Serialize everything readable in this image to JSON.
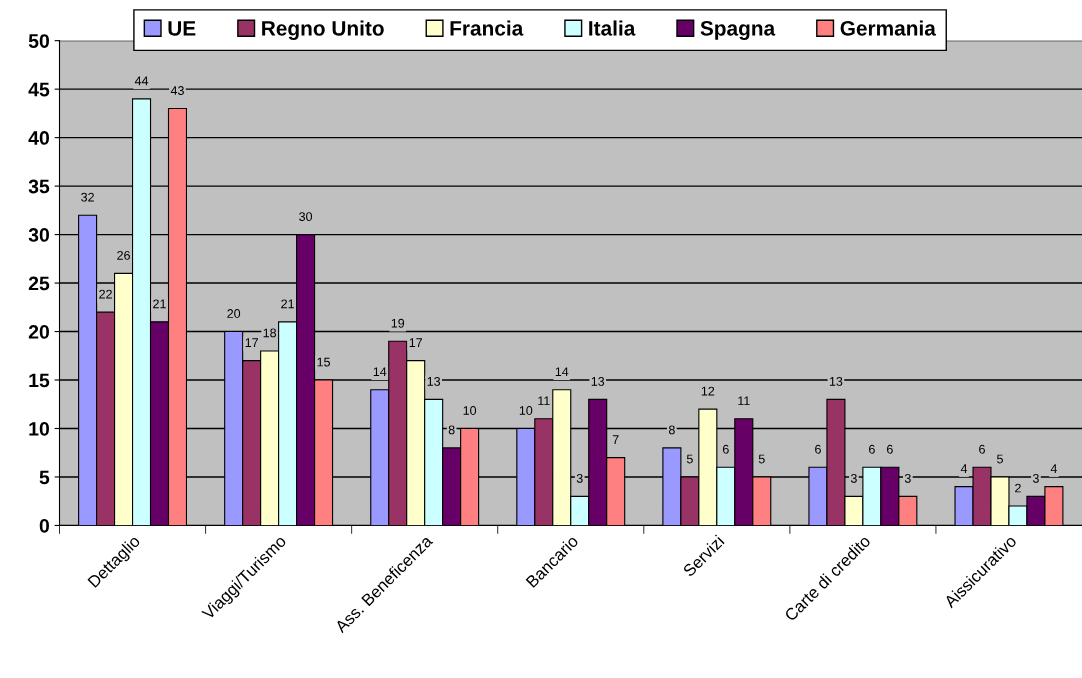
{
  "chart_data": {
    "type": "bar",
    "categories": [
      "Dettaglio",
      "Viaggi/Turismo",
      "Ass. Beneficenza",
      "Bancario",
      "Servizi",
      "Carte di credito",
      "Aissicurativo"
    ],
    "series": [
      {
        "name": "UE",
        "color": "#9999ff",
        "values": [
          32,
          20,
          14,
          10,
          8,
          6,
          4
        ]
      },
      {
        "name": "Regno Unito",
        "color": "#993366",
        "values": [
          22,
          17,
          19,
          11,
          5,
          13,
          6
        ]
      },
      {
        "name": "Francia",
        "color": "#ffffcc",
        "values": [
          26,
          18,
          17,
          14,
          12,
          3,
          5
        ]
      },
      {
        "name": "Italia",
        "color": "#ccffff",
        "values": [
          44,
          21,
          13,
          3,
          6,
          6,
          2
        ]
      },
      {
        "name": "Spagna",
        "color": "#660066",
        "values": [
          21,
          30,
          8,
          13,
          11,
          6,
          3
        ]
      },
      {
        "name": "Germania",
        "color": "#ff8080",
        "values": [
          43,
          15,
          10,
          7,
          5,
          3,
          4
        ]
      }
    ],
    "ylim": [
      0,
      50
    ],
    "yticks": [
      0,
      5,
      10,
      15,
      20,
      25,
      30,
      35,
      40,
      45,
      50
    ],
    "grid": "y",
    "legend": "top",
    "data_labels": true
  }
}
